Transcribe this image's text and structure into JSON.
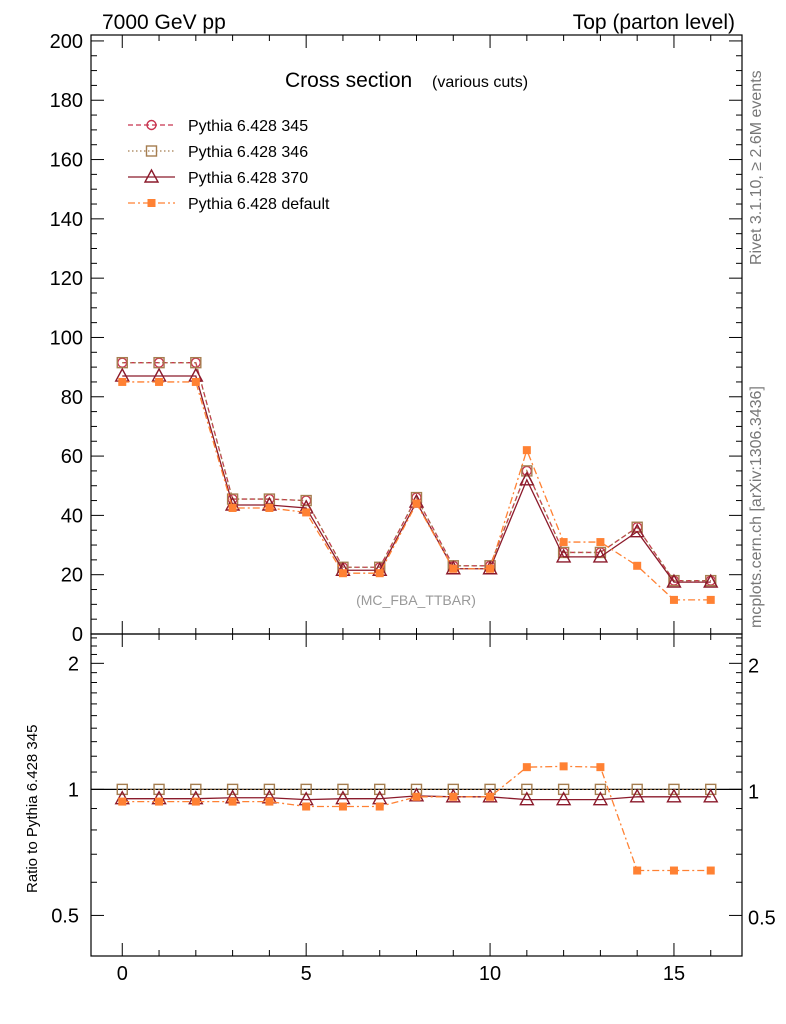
{
  "header": {
    "left": "7000 GeV pp",
    "right": "Top (parton level)"
  },
  "side_labels": {
    "upper": "Rivet 3.1.10, ≥ 2.6M events",
    "lower": "mcplots.cern.ch [arXiv:1306.3436]"
  },
  "analysis_label": "(MC_FBA_TTBAR)",
  "colors": {
    "p345": "#c8344f",
    "p346": "#a57d4f",
    "p370": "#8b1a2b",
    "pdef": "#ff8133"
  },
  "chart_data": [
    {
      "type": "line",
      "panel": "main",
      "title": "Cross section",
      "subtitle": "(various cuts)",
      "xlabel": "",
      "ylabel": "",
      "xlim": [
        -0.85,
        16.85
      ],
      "ylim": [
        0,
        202
      ],
      "yticks": [
        0,
        20,
        40,
        60,
        80,
        100,
        120,
        140,
        160,
        180,
        200
      ],
      "xticks": [
        0,
        5,
        10,
        15
      ],
      "legend_position": "top-left",
      "x": [
        0,
        1,
        2,
        3,
        4,
        5,
        6,
        7,
        8,
        9,
        10,
        11,
        12,
        13,
        14,
        15,
        16
      ],
      "series": [
        {
          "name": "Pythia 6.428 345",
          "marker": "circle-open",
          "line": "dashed",
          "color_key": "p345",
          "values": [
            91.5,
            91.5,
            91.5,
            45.5,
            45.5,
            45,
            22.5,
            22.5,
            46,
            23,
            23,
            55,
            27.5,
            27.5,
            36,
            18,
            18
          ]
        },
        {
          "name": "Pythia 6.428 346",
          "marker": "square-open",
          "line": "dotted",
          "color_key": "p346",
          "values": [
            91.5,
            91.5,
            91.5,
            45.5,
            45.5,
            45,
            22.5,
            22.5,
            46,
            23,
            23,
            55,
            27.5,
            27.5,
            36,
            18,
            18
          ]
        },
        {
          "name": "Pythia 6.428 370",
          "marker": "triangle-open",
          "line": "solid",
          "color_key": "p370",
          "values": [
            87,
            87,
            87,
            43.5,
            43.5,
            42.5,
            21.5,
            21.5,
            44.5,
            22,
            22,
            52,
            26,
            26,
            34.5,
            17.5,
            17.5
          ]
        },
        {
          "name": "Pythia 6.428 default",
          "marker": "square-filled",
          "line": "dashdot",
          "color_key": "pdef",
          "values": [
            85,
            85,
            85,
            42.5,
            42.5,
            41,
            20.5,
            20.5,
            44,
            22,
            22,
            62,
            31,
            31,
            23,
            11.5,
            11.5
          ]
        }
      ]
    },
    {
      "type": "line",
      "panel": "ratio",
      "title": "",
      "xlabel": "",
      "ylabel": "Ratio to Pythia 6.428 345",
      "scale": "log",
      "xlim": [
        -0.85,
        16.85
      ],
      "ylim": [
        0.4,
        2.35
      ],
      "yticks": [
        0.5,
        1,
        2
      ],
      "xticks": [
        0,
        5,
        10,
        15
      ],
      "x": [
        0,
        1,
        2,
        3,
        4,
        5,
        6,
        7,
        8,
        9,
        10,
        11,
        12,
        13,
        14,
        15,
        16
      ],
      "series": [
        {
          "name": "Pythia 6.428 345",
          "marker": "circle-open",
          "line": "dashed",
          "color_key": "p345",
          "values": [
            1,
            1,
            1,
            1,
            1,
            1,
            1,
            1,
            1,
            1,
            1,
            1,
            1,
            1,
            1,
            1,
            1
          ]
        },
        {
          "name": "Pythia 6.428 346",
          "marker": "square-open",
          "line": "dotted",
          "color_key": "p346",
          "values": [
            1,
            1,
            1,
            1,
            1,
            1,
            1,
            1,
            1,
            1,
            1,
            1,
            1,
            1,
            1,
            1,
            1
          ]
        },
        {
          "name": "Pythia 6.428 370",
          "marker": "triangle-open",
          "line": "solid",
          "color_key": "p370",
          "values": [
            0.95,
            0.95,
            0.95,
            0.955,
            0.955,
            0.945,
            0.95,
            0.95,
            0.965,
            0.96,
            0.96,
            0.945,
            0.945,
            0.945,
            0.96,
            0.96,
            0.96
          ]
        },
        {
          "name": "Pythia 6.428 default",
          "marker": "square-filled",
          "line": "dashdot",
          "color_key": "pdef",
          "values": [
            0.935,
            0.935,
            0.935,
            0.935,
            0.935,
            0.91,
            0.91,
            0.91,
            0.96,
            0.96,
            0.96,
            1.13,
            1.135,
            1.13,
            0.64,
            0.64,
            0.64
          ]
        }
      ]
    }
  ]
}
